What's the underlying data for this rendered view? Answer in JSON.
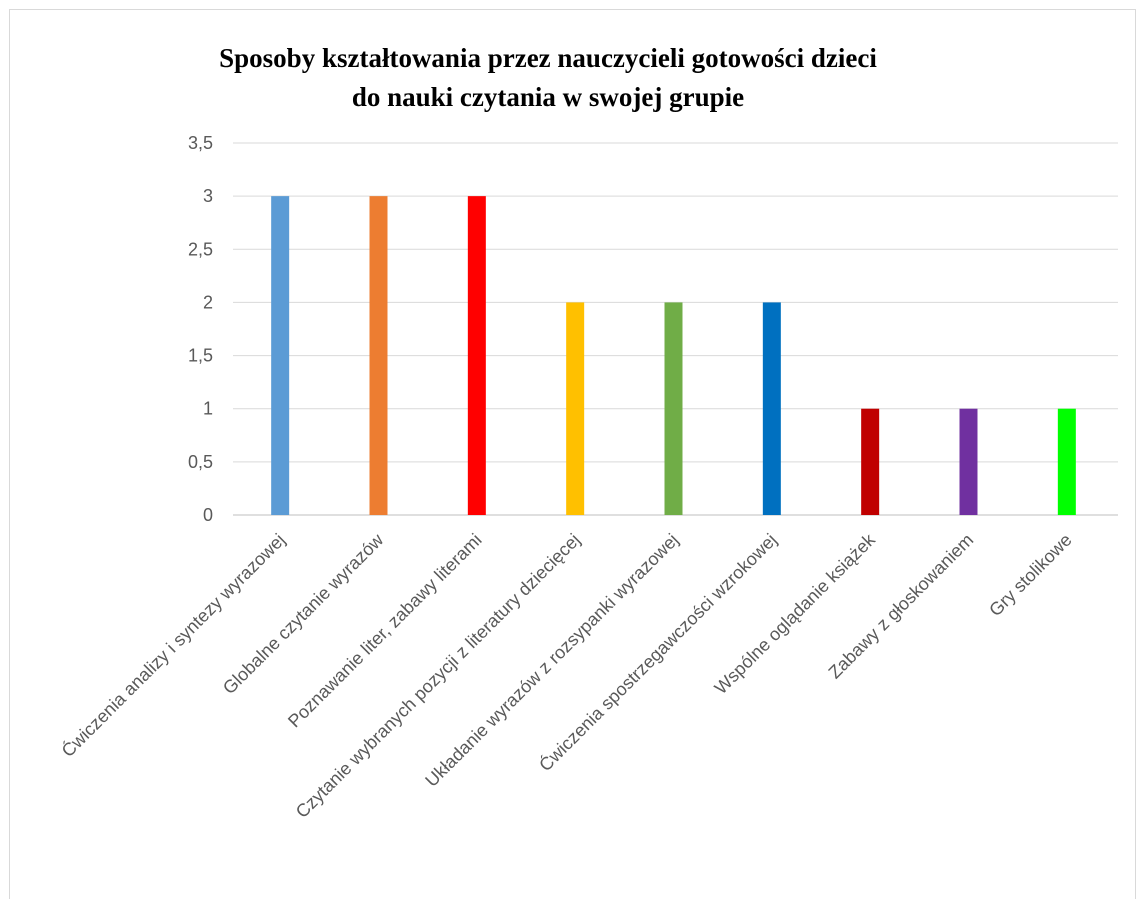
{
  "chart_data": {
    "type": "bar",
    "title_lines": [
      "Sposoby kształtowania przez nauczycieli gotowości dzieci",
      "do nauki czytania w swojej grupie"
    ],
    "categories": [
      "Ćwiczenia analizy i syntezy wyrazowej",
      "Globalne czytanie wyrazów",
      "Poznawanie liter, zabawy literami",
      "Czytanie wybranych pozycji z literatury dziecięcej",
      "Układanie wyrazów z rozsypanki wyrazowej",
      "Ćwiczenia spostrzegawczości wzrokowej",
      "Wspólne oglądanie książek",
      "Zabawy z głoskowaniem",
      "Gry stolikowe"
    ],
    "values": [
      3,
      3,
      3,
      2,
      2,
      2,
      1,
      1,
      1
    ],
    "colors": [
      "#5b9bd5",
      "#ed7d31",
      "#ff0000",
      "#ffc000",
      "#70ad47",
      "#0070c0",
      "#c00000",
      "#7030a0",
      "#00ff00"
    ],
    "yticks": [
      "0",
      "0,5",
      "1",
      "1,5",
      "2",
      "2,5",
      "3",
      "3,5"
    ],
    "ylim": [
      0,
      3.5
    ],
    "grid": true,
    "legend": "none"
  }
}
